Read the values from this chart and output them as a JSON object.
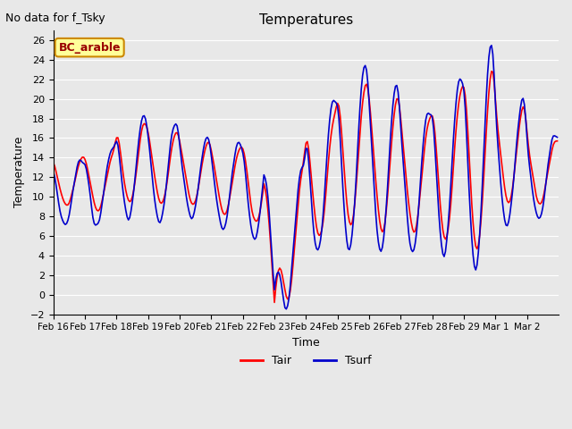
{
  "title": "Temperatures",
  "xlabel": "Time",
  "ylabel": "Temperature",
  "annotation_text": "No data for f_Tsky",
  "legend_label": "BC_arable",
  "tair_label": "Tair",
  "tsurf_label": "Tsurf",
  "tair_color": "#ff0000",
  "tsurf_color": "#0000cc",
  "ylim": [
    -2,
    27
  ],
  "yticks": [
    -2,
    0,
    2,
    4,
    6,
    8,
    10,
    12,
    14,
    16,
    18,
    20,
    22,
    24,
    26
  ],
  "background_color": "#e8e8e8",
  "plot_background": "#e8e8e8",
  "grid_color": "white",
  "xtick_labels": [
    "Feb 16",
    "Feb 17",
    "Feb 18",
    "Feb 19",
    "Feb 20",
    "Feb 21",
    "Feb 22",
    "Feb 23",
    "Feb 24",
    "Feb 25",
    "Feb 26",
    "Feb 27",
    "Feb 28",
    "Feb 29",
    "Mar 1",
    "Mar 2"
  ]
}
